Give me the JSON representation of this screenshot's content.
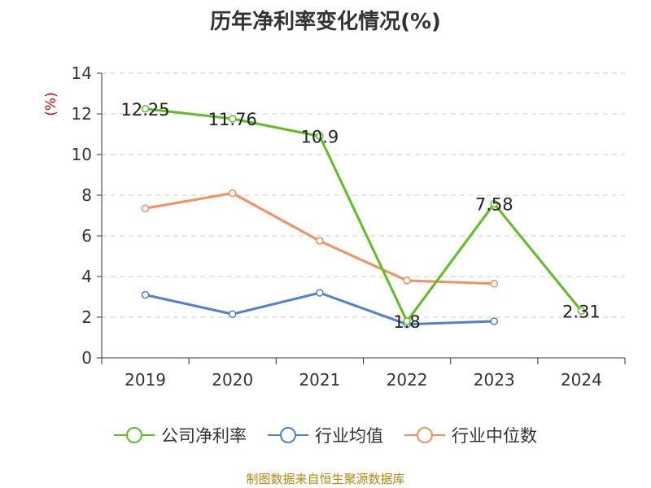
{
  "title": "历年净利率变化情况(%)",
  "source_note": "制图数据来自恒生聚源数据库",
  "chart_data": {
    "type": "line",
    "categories": [
      "2019",
      "2020",
      "2021",
      "2022",
      "2023",
      "2024"
    ],
    "ylabel": "(%)",
    "ylim": [
      0,
      14
    ],
    "yticks": [
      0,
      2,
      4,
      6,
      8,
      10,
      12,
      14
    ],
    "grid": true,
    "legend_position": "bottom",
    "series": [
      {
        "name": "公司净利率",
        "color": "#5cc021",
        "values": [
          12.25,
          11.76,
          10.9,
          1.8,
          7.58,
          2.31
        ],
        "data_labels": [
          "12.25",
          "11.76",
          "10.9",
          "1.8",
          "7.58",
          "2.31"
        ]
      },
      {
        "name": "行业均值",
        "color": "#4f7fd6",
        "values": [
          3.1,
          2.15,
          3.2,
          1.65,
          1.8,
          null
        ]
      },
      {
        "name": "行业中位数",
        "color": "#f58f5c",
        "values": [
          7.35,
          8.1,
          5.75,
          3.8,
          3.65,
          null
        ]
      }
    ]
  }
}
